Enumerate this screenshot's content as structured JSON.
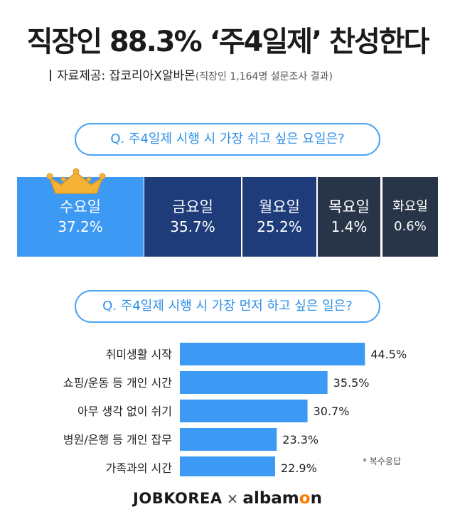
{
  "title": "직장인 88.3% ‘주4일제’ 찬성한다",
  "source": {
    "label": "자료제공: 잡코리아X알바몬",
    "note": "(직장인 1,164명 설문조사 결과)"
  },
  "question1": "Q. 주4일제 시행 시 가장 쉬고 싶은 요일은?",
  "question2": "Q. 주4일제 시행 시 가장 먼저 하고 싶은 일은?",
  "footnote": "* 복수응답",
  "logos": {
    "jobkorea": "JOBKOREA",
    "x": "×",
    "albamon_a": "albam",
    "albamon_o": "o",
    "albamon_b": "n"
  },
  "colors": {
    "accent_blue": "#3d9af4",
    "navy": "#1f3c7a",
    "dark": "#283548",
    "bar_blue": "#3d9af4",
    "crown": "#f5b335"
  },
  "chart_data": [
    {
      "type": "bar",
      "title": "Q. 주4일제 시행 시 가장 쉬고 싶은 요일은?",
      "categories": [
        "수요일",
        "금요일",
        "월요일",
        "목요일",
        "화요일"
      ],
      "values": [
        37.2,
        35.7,
        25.2,
        1.4,
        0.6
      ],
      "labels": [
        "37.2%",
        "35.7%",
        "25.2%",
        "1.4%",
        "0.6%"
      ],
      "highlight": "수요일",
      "highlight_icon": "crown-icon"
    },
    {
      "type": "bar",
      "orientation": "horizontal",
      "title": "Q. 주4일제 시행 시 가장 먼저 하고 싶은 일은?",
      "categories": [
        "취미생활 시작",
        "쇼핑/운동 등 개인 시간",
        "아무 생각 없이 쉬기",
        "병원/은행 등 개인 잡무",
        "가족과의 시간"
      ],
      "values": [
        44.5,
        35.5,
        30.7,
        23.3,
        22.9
      ],
      "labels": [
        "44.5%",
        "35.5%",
        "30.7%",
        "23.3%",
        "22.9%"
      ],
      "grid": false
    }
  ]
}
